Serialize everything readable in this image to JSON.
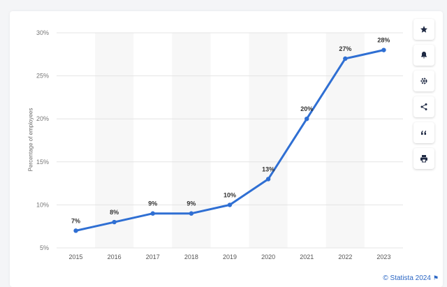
{
  "chart_data": {
    "type": "line",
    "categories": [
      "2015",
      "2016",
      "2017",
      "2018",
      "2019",
      "2020",
      "2021",
      "2022",
      "2023"
    ],
    "values": [
      7,
      8,
      9,
      9,
      10,
      13,
      20,
      27,
      28
    ],
    "data_labels": [
      "7%",
      "8%",
      "9%",
      "9%",
      "10%",
      "13%",
      "20%",
      "27%",
      "28%"
    ],
    "ylabel": "Percentage of employees",
    "ylim": [
      5,
      30
    ],
    "yticks": [
      5,
      10,
      15,
      20,
      25,
      30
    ],
    "ytick_labels": [
      "5%",
      "10%",
      "15%",
      "20%",
      "25%",
      "30%"
    ],
    "grid": true,
    "line_color": "#2f6fd3"
  },
  "toolbar": {
    "buttons": [
      "star-icon",
      "bell-icon",
      "gear-icon",
      "share-icon",
      "quote-icon",
      "print-icon"
    ]
  },
  "credit": {
    "text": "© Statista 2024"
  }
}
